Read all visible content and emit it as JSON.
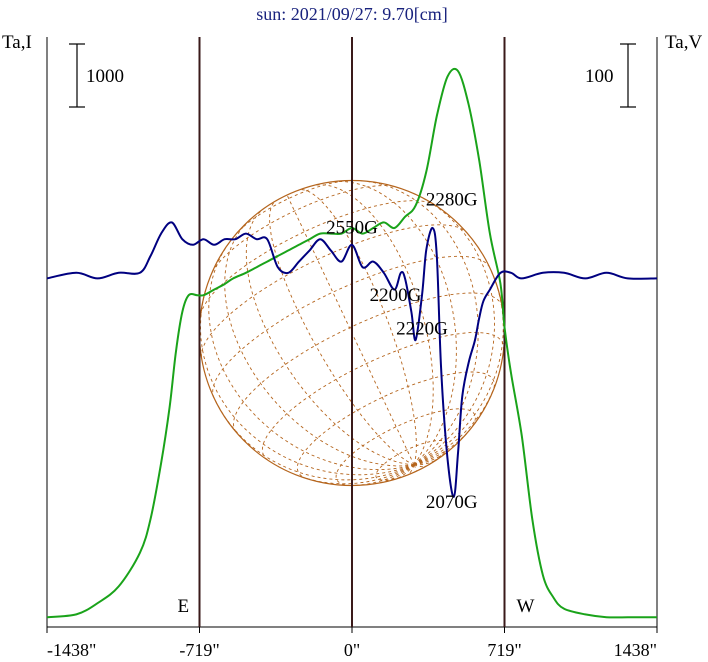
{
  "chart_data": {
    "type": "line",
    "title": "sun: 2021/09/27: 9.70[cm]",
    "y_left_label": "Ta,I",
    "y_right_label": "Ta,V",
    "scale_bar_left": "1000",
    "scale_bar_right": "100",
    "x_tick_labels": [
      "-1438\"",
      "-719\"",
      "0\"",
      "719\"",
      "1438\""
    ],
    "x_ticks": [
      -1438,
      -719,
      0,
      719,
      1438
    ],
    "xlim": [
      -1438,
      1438
    ],
    "limb_markers": [
      {
        "label": "E",
        "x": -719
      },
      {
        "label": "W",
        "x": 719
      }
    ],
    "colors": {
      "intensity": "#1aa31a",
      "polarization": "#000080",
      "grid": "#b5651d",
      "axes": "#000000",
      "limb_lines": "#3a1a1a",
      "title": "#1a237e"
    },
    "annotations": [
      {
        "text": "2550G",
        "x": 0,
        "y_I": 0.69
      },
      {
        "text": "2280G",
        "x": 470,
        "y_I": 0.74
      },
      {
        "text": "2200G",
        "x": 205,
        "y_I": 0.57
      },
      {
        "text": "2220G",
        "x": 330,
        "y_I": 0.51
      },
      {
        "text": "2070G",
        "x": 470,
        "y_I": 0.2
      }
    ],
    "series": [
      {
        "name": "Ta,I",
        "x": [
          -1438,
          -1300,
          -1200,
          -1100,
          -1000,
          -950,
          -900,
          -860,
          -830,
          -800,
          -770,
          -730,
          -700,
          -650,
          -600,
          -560,
          -500,
          -450,
          -400,
          -350,
          -300,
          -250,
          -200,
          -150,
          -100,
          -50,
          0,
          50,
          100,
          150,
          200,
          250,
          300,
          350,
          400,
          450,
          500,
          550,
          600,
          650,
          700,
          720,
          750,
          800,
          850,
          900,
          950,
          1000,
          1100,
          1200,
          1300,
          1438
        ],
        "y": [
          0.005,
          0.01,
          0.03,
          0.06,
          0.12,
          0.18,
          0.28,
          0.38,
          0.48,
          0.55,
          0.58,
          0.58,
          0.58,
          0.59,
          0.6,
          0.61,
          0.62,
          0.63,
          0.64,
          0.65,
          0.66,
          0.67,
          0.68,
          0.69,
          0.69,
          0.69,
          0.7,
          0.69,
          0.7,
          0.71,
          0.7,
          0.72,
          0.74,
          0.8,
          0.9,
          0.97,
          0.98,
          0.92,
          0.82,
          0.69,
          0.6,
          0.52,
          0.44,
          0.33,
          0.18,
          0.08,
          0.04,
          0.02,
          0.01,
          0.005,
          0.005,
          0.005
        ]
      },
      {
        "name": "Ta,V",
        "x": [
          -1438,
          -1300,
          -1200,
          -1100,
          -1000,
          -950,
          -900,
          -850,
          -800,
          -750,
          -700,
          -650,
          -600,
          -550,
          -500,
          -450,
          -400,
          -350,
          -300,
          -250,
          -200,
          -150,
          -100,
          -50,
          0,
          50,
          100,
          150,
          200,
          230,
          250,
          280,
          300,
          330,
          350,
          380,
          400,
          420,
          450,
          480,
          500,
          520,
          550,
          580,
          600,
          620,
          650,
          700,
          750,
          800,
          900,
          1000,
          1100,
          1200,
          1300,
          1438
        ],
        "y": [
          0.61,
          0.62,
          0.61,
          0.62,
          0.62,
          0.65,
          0.69,
          0.71,
          0.68,
          0.67,
          0.68,
          0.67,
          0.68,
          0.68,
          0.69,
          0.68,
          0.68,
          0.63,
          0.62,
          0.64,
          0.66,
          0.68,
          0.66,
          0.64,
          0.67,
          0.63,
          0.64,
          0.62,
          0.59,
          0.62,
          0.61,
          0.55,
          0.5,
          0.58,
          0.66,
          0.7,
          0.65,
          0.45,
          0.29,
          0.22,
          0.3,
          0.4,
          0.46,
          0.5,
          0.54,
          0.57,
          0.59,
          0.62,
          0.62,
          0.61,
          0.62,
          0.62,
          0.61,
          0.62,
          0.61,
          0.61
        ]
      }
    ]
  }
}
